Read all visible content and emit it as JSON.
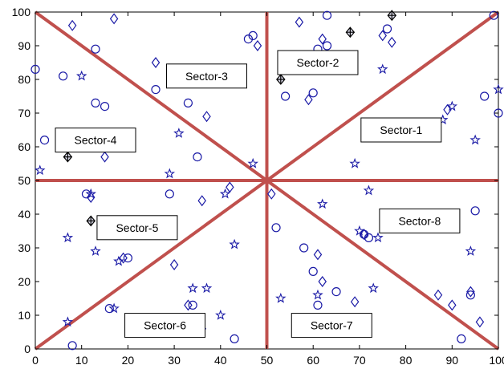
{
  "chart_data": {
    "type": "scatter",
    "xlim": [
      0,
      100
    ],
    "ylim": [
      0,
      100
    ],
    "x_ticks": [
      0,
      10,
      20,
      30,
      40,
      50,
      60,
      70,
      80,
      90,
      100
    ],
    "y_ticks": [
      0,
      10,
      20,
      30,
      40,
      50,
      60,
      70,
      80,
      90,
      100
    ],
    "grid": false,
    "marker_color": "#1a1aa6",
    "divider_color": "#c0504d",
    "center": [
      50,
      50
    ],
    "dividers": [
      {
        "from": [
          0,
          100
        ],
        "to": [
          100,
          0
        ]
      },
      {
        "from": [
          0,
          0
        ],
        "to": [
          100,
          100
        ]
      },
      {
        "from": [
          50,
          0
        ],
        "to": [
          50,
          100
        ]
      },
      {
        "from": [
          0,
          50
        ],
        "to": [
          100,
          50
        ]
      }
    ],
    "sector_labels": [
      {
        "text": "Sector-1",
        "x": 79,
        "y": 65
      },
      {
        "text": "Sector-2",
        "x": 61,
        "y": 85
      },
      {
        "text": "Sector-3",
        "x": 37,
        "y": 81
      },
      {
        "text": "Sector-4",
        "x": 13,
        "y": 62
      },
      {
        "text": "Sector-5",
        "x": 22,
        "y": 36
      },
      {
        "text": "Sector-6",
        "x": 28,
        "y": 7
      },
      {
        "text": "Sector-7",
        "x": 64,
        "y": 7
      },
      {
        "text": "Sector-8",
        "x": 83,
        "y": 38
      }
    ],
    "series": [
      {
        "marker": "circle",
        "points": [
          [
            0,
            83
          ],
          [
            2,
            62
          ],
          [
            6,
            81
          ],
          [
            13,
            89
          ],
          [
            13,
            73
          ],
          [
            15,
            72
          ],
          [
            26,
            77
          ],
          [
            33,
            73
          ],
          [
            35,
            57
          ],
          [
            46,
            92
          ],
          [
            47,
            93
          ],
          [
            54,
            75
          ],
          [
            60,
            76
          ],
          [
            61,
            89
          ],
          [
            63,
            90
          ],
          [
            63,
            99
          ],
          [
            76,
            95
          ],
          [
            97,
            75
          ],
          [
            100,
            70
          ],
          [
            99,
            99
          ],
          [
            11,
            46
          ],
          [
            20,
            27
          ],
          [
            29,
            46
          ],
          [
            52,
            36
          ],
          [
            58,
            30
          ],
          [
            60,
            23
          ],
          [
            71,
            34
          ],
          [
            72,
            33
          ],
          [
            95,
            41
          ],
          [
            16,
            12
          ],
          [
            34,
            13
          ],
          [
            43,
            3
          ],
          [
            61,
            13
          ],
          [
            65,
            17
          ],
          [
            92,
            3
          ],
          [
            94,
            16
          ],
          [
            8,
            1
          ]
        ]
      },
      {
        "marker": "diamond",
        "points": [
          [
            8,
            96
          ],
          [
            17,
            98
          ],
          [
            26,
            85
          ],
          [
            15,
            57
          ],
          [
            37,
            69
          ],
          [
            48,
            90
          ],
          [
            57,
            97
          ],
          [
            59,
            74
          ],
          [
            62,
            92
          ],
          [
            75,
            93
          ],
          [
            77,
            91
          ],
          [
            89,
            71
          ],
          [
            12,
            45
          ],
          [
            19,
            27
          ],
          [
            30,
            25
          ],
          [
            36,
            44
          ],
          [
            61,
            28
          ],
          [
            62,
            20
          ],
          [
            69,
            14
          ],
          [
            71,
            34
          ],
          [
            87,
            16
          ],
          [
            90,
            13
          ],
          [
            94,
            17
          ],
          [
            96,
            8
          ],
          [
            33,
            13
          ],
          [
            36,
            6
          ],
          [
            42,
            48
          ],
          [
            51,
            46
          ]
        ]
      },
      {
        "marker": "star",
        "points": [
          [
            10,
            81
          ],
          [
            1,
            53
          ],
          [
            31,
            64
          ],
          [
            29,
            52
          ],
          [
            47,
            55
          ],
          [
            69,
            55
          ],
          [
            72,
            47
          ],
          [
            75,
            83
          ],
          [
            88,
            68
          ],
          [
            90,
            72
          ],
          [
            95,
            62
          ],
          [
            100,
            77
          ],
          [
            7,
            33
          ],
          [
            12,
            46
          ],
          [
            13,
            29
          ],
          [
            18,
            26
          ],
          [
            34,
            18
          ],
          [
            37,
            18
          ],
          [
            41,
            46
          ],
          [
            43,
            31
          ],
          [
            40,
            10
          ],
          [
            17,
            12
          ],
          [
            7,
            8
          ],
          [
            53,
            15
          ],
          [
            61,
            16
          ],
          [
            62,
            43
          ],
          [
            70,
            35
          ],
          [
            74,
            33
          ],
          [
            73,
            18
          ],
          [
            94,
            29
          ]
        ]
      },
      {
        "marker": "diamond-cross",
        "points": [
          [
            7,
            57
          ],
          [
            12,
            38
          ],
          [
            53,
            80
          ],
          [
            68,
            94
          ],
          [
            77,
            99
          ]
        ]
      }
    ]
  }
}
